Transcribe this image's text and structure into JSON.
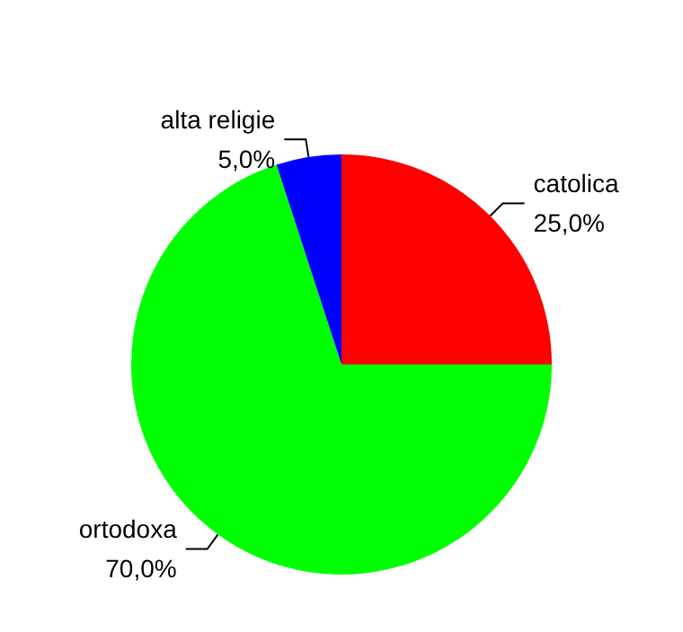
{
  "chart_data": {
    "type": "pie",
    "categories": [
      "catolica",
      "ortodoxa",
      "alta religie"
    ],
    "values": [
      25,
      70,
      5
    ],
    "value_labels": [
      "25,0%",
      "70,0%",
      "5,0%"
    ],
    "colors": [
      "#ff0000",
      "#00ff00",
      "#0000ff"
    ],
    "legend": false
  }
}
